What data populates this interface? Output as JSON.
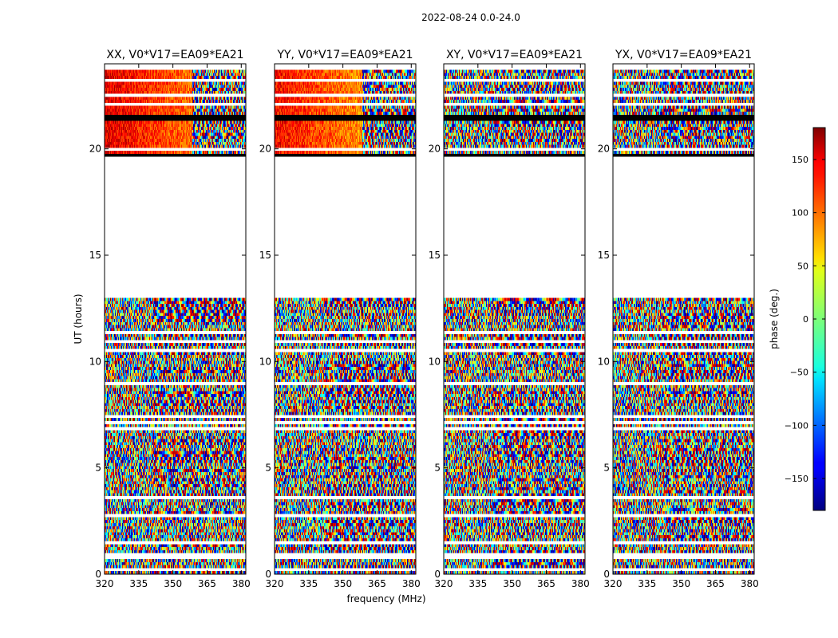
{
  "figure": {
    "suptitle": "2022-08-24 0.0-24.0",
    "xlabel": "frequency (MHz)",
    "ylabel": "UT (hours)",
    "colorbar_label": "phase (deg.)"
  },
  "chart_data": {
    "type": "heatmap",
    "subtype": "waterfall",
    "xlim": [
      320,
      382
    ],
    "ylim": [
      0,
      24
    ],
    "xticks": [
      320,
      335,
      350,
      365,
      380
    ],
    "yticks": [
      0,
      5,
      10,
      15,
      20
    ],
    "colorbar": {
      "vmin": -180,
      "vmax": 180,
      "ticks": [
        -150,
        -100,
        -50,
        0,
        50,
        100,
        150
      ],
      "tick_labels": [
        "−150",
        "−100",
        "−50",
        "0",
        "50",
        "100",
        "150"
      ],
      "colormap": "jet"
    },
    "data_gap_hours": [
      13.0,
      19.6
    ],
    "flagged_black_bands_hours": [
      [
        19.5,
        19.8
      ],
      [
        21.3,
        21.6
      ]
    ],
    "panels": [
      {
        "title": "XX, V0*V17=EA09*EA21",
        "pol": "XX",
        "coherent_phase_deg": 145
      },
      {
        "title": "YY, V0*V17=EA09*EA21",
        "pol": "YY",
        "coherent_phase_deg": 135
      },
      {
        "title": "XY, V0*V17=EA09*EA21",
        "pol": "XY",
        "coherent_phase_deg": null
      },
      {
        "title": "YX, V0*V17=EA09*EA21",
        "pol": "YX",
        "coherent_phase_deg": null
      }
    ]
  },
  "colors": {
    "flag": "#000000",
    "gap": "#ffffff"
  }
}
